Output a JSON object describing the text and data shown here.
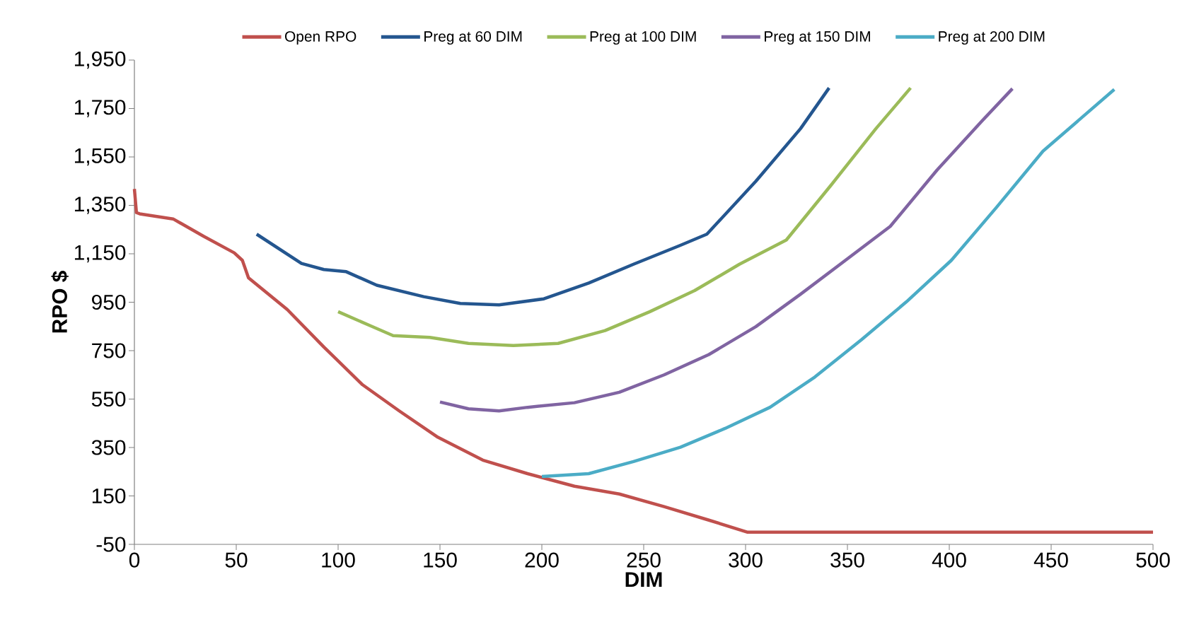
{
  "chart_data": {
    "type": "line",
    "xlabel": "DIM",
    "ylabel": "RPO $",
    "xlim": [
      0,
      500
    ],
    "xticks": [
      0,
      50,
      100,
      150,
      200,
      250,
      300,
      350,
      400,
      450,
      500
    ],
    "ylim": [
      -50,
      1950
    ],
    "yticks": [
      -50,
      150,
      350,
      550,
      750,
      950,
      {
        "value": 1150,
        "label": "1,150"
      },
      {
        "value": 1350,
        "label": "1,350"
      },
      {
        "value": 1550,
        "label": "1,550"
      },
      {
        "value": 1750,
        "label": "1,750"
      },
      {
        "value": 1950,
        "label": "1,950"
      }
    ],
    "grid": false,
    "legend": "top",
    "marker": "none",
    "line_style": "solid",
    "series": [
      {
        "name": "Open RPO",
        "color": "#c0504d",
        "x": [
          0,
          1,
          2.6,
          19,
          34,
          49,
          53,
          56,
          75,
          93,
          112,
          130,
          149,
          171,
          193,
          216,
          238,
          260,
          282,
          301,
          350,
          400,
          450,
          500
        ],
        "values": [
          1418,
          1320,
          1315,
          1294,
          1222,
          1154,
          1123,
          1051,
          920,
          765,
          609,
          501,
          392,
          298,
          242,
          190,
          158,
          106,
          50,
          0,
          0,
          0,
          0,
          0
        ]
      },
      {
        "name": "Preg at 60 DIM",
        "color": "#24568f",
        "x": [
          60,
          82,
          93,
          104,
          119,
          142,
          160,
          179,
          201,
          223,
          245,
          268,
          281,
          305,
          327,
          341
        ],
        "values": [
          1231,
          1110,
          1085,
          1076,
          1020,
          973,
          945,
          939,
          964,
          1029,
          1107,
          1185,
          1231,
          1449,
          1667,
          1835
        ]
      },
      {
        "name": "Preg at 100 DIM",
        "color": "#9bbb59",
        "x": [
          100,
          116,
          127,
          145,
          164,
          186,
          208,
          231,
          253,
          275,
          297,
          320,
          342,
          364,
          381
        ],
        "values": [
          911,
          852,
          812,
          805,
          780,
          771,
          780,
          833,
          911,
          998,
          1107,
          1207,
          1434,
          1667,
          1835
        ]
      },
      {
        "name": "Preg at 150 DIM",
        "color": "#8064a2",
        "x": [
          150,
          164,
          179,
          193,
          216,
          238,
          260,
          282,
          305,
          327,
          349,
          371,
          394,
          416,
          431
        ],
        "values": [
          538,
          510,
          501,
          516,
          535,
          578,
          650,
          734,
          849,
          983,
          1123,
          1263,
          1496,
          1698,
          1832
        ]
      },
      {
        "name": "Preg at 200 DIM",
        "color": "#4bacc6",
        "x": [
          200,
          223,
          245,
          268,
          290,
          312,
          334,
          357,
          379,
          401,
          423,
          446,
          481
        ],
        "values": [
          230,
          242,
          292,
          351,
          429,
          516,
          641,
          796,
          952,
          1123,
          1340,
          1574,
          1829
        ]
      }
    ]
  }
}
